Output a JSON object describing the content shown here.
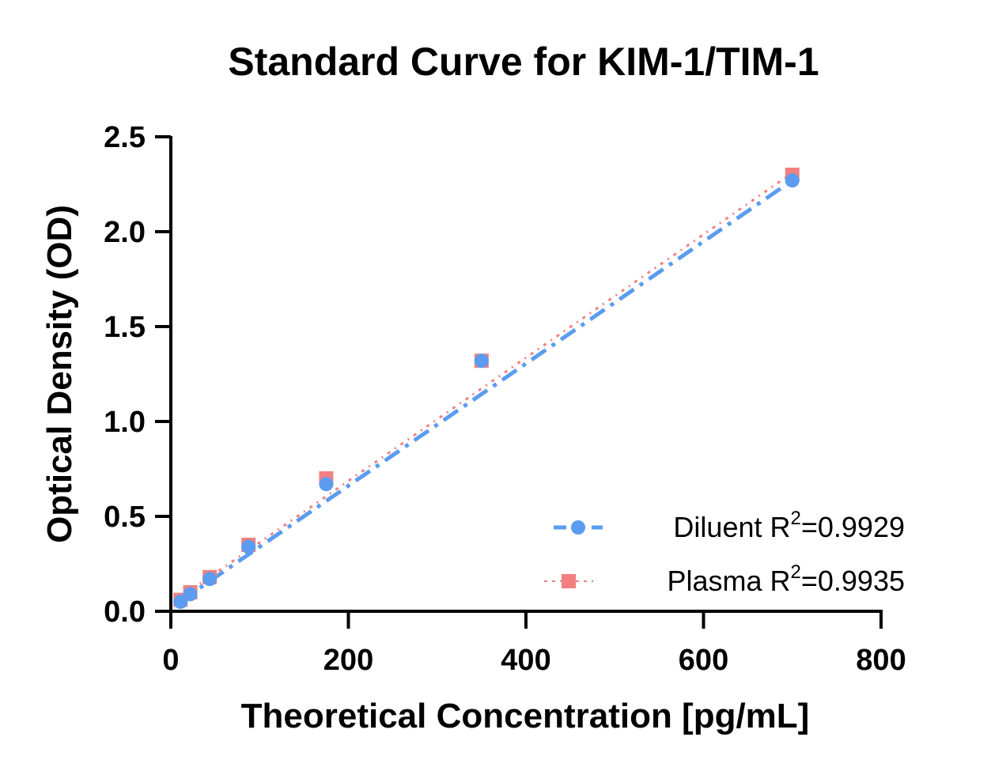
{
  "chart_data": {
    "type": "scatter",
    "title": "Standard Curve for KIM-1/TIM-1",
    "xlabel": "Theoretical Concentration [pg/mL]",
    "ylabel": "Optical Density (OD)",
    "xlim": [
      0,
      800
    ],
    "ylim": [
      0,
      2.5
    ],
    "xticks": [
      "0",
      "200",
      "400",
      "600",
      "800"
    ],
    "yticks": [
      "0.0",
      "0.5",
      "1.0",
      "1.5",
      "2.0",
      "2.5"
    ],
    "xtick_values": [
      0,
      200,
      400,
      600,
      800
    ],
    "ytick_values": [
      0,
      0.5,
      1.0,
      1.5,
      2.0,
      2.5
    ],
    "grid": false,
    "legend_position": "bottom-right",
    "series": [
      {
        "name": "Diluent",
        "r2_label": "R",
        "r2_exp": "2",
        "r2_value": "=0.9929",
        "color": "#5b9cf0",
        "marker": "circle",
        "line": "dashed",
        "x": [
          10.9,
          21.9,
          43.8,
          87.5,
          175,
          350,
          700
        ],
        "y": [
          0.05,
          0.09,
          0.17,
          0.34,
          0.67,
          1.32,
          2.27
        ],
        "fit": [
          [
            10,
            0.05
          ],
          [
            700,
            2.27
          ]
        ]
      },
      {
        "name": "Plasma",
        "r2_label": "R",
        "r2_exp": "2",
        "r2_value": "=0.9935",
        "color": "#f28080",
        "marker": "square",
        "line": "dotted",
        "x": [
          10.9,
          21.9,
          43.8,
          87.5,
          175,
          350,
          700
        ],
        "y": [
          0.06,
          0.1,
          0.18,
          0.35,
          0.7,
          1.32,
          2.3
        ],
        "fit": [
          [
            10,
            0.07
          ],
          [
            700,
            2.31
          ]
        ]
      }
    ]
  }
}
